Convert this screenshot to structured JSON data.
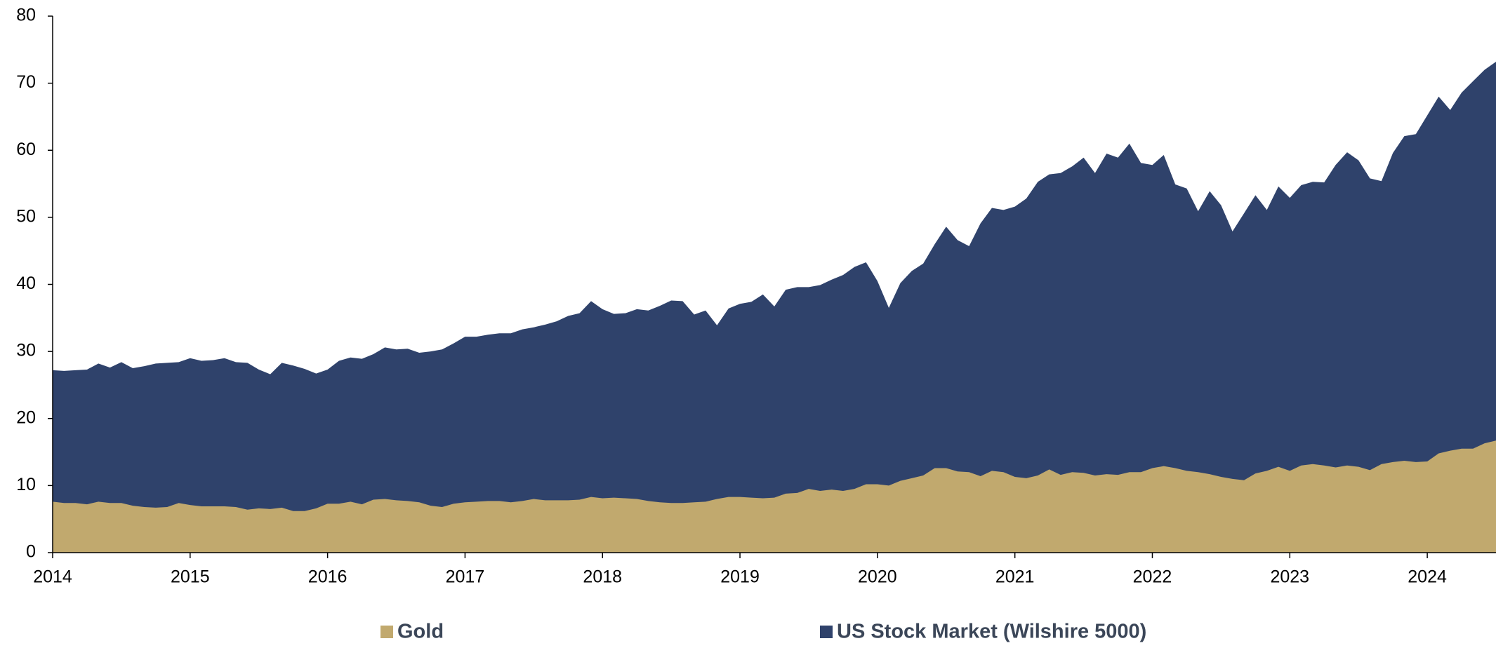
{
  "chart_data": {
    "type": "area",
    "x": [
      2014,
      2014.083,
      2014.167,
      2014.25,
      2014.333,
      2014.417,
      2014.5,
      2014.583,
      2014.667,
      2014.75,
      2014.833,
      2014.917,
      2015,
      2015.083,
      2015.167,
      2015.25,
      2015.333,
      2015.417,
      2015.5,
      2015.583,
      2015.667,
      2015.75,
      2015.833,
      2015.917,
      2016,
      2016.083,
      2016.167,
      2016.25,
      2016.333,
      2016.417,
      2016.5,
      2016.583,
      2016.667,
      2016.75,
      2016.833,
      2016.917,
      2017,
      2017.083,
      2017.167,
      2017.25,
      2017.333,
      2017.417,
      2017.5,
      2017.583,
      2017.667,
      2017.75,
      2017.833,
      2017.917,
      2018,
      2018.083,
      2018.167,
      2018.25,
      2018.333,
      2018.417,
      2018.5,
      2018.583,
      2018.667,
      2018.75,
      2018.833,
      2018.917,
      2019,
      2019.083,
      2019.167,
      2019.25,
      2019.333,
      2019.417,
      2019.5,
      2019.583,
      2019.667,
      2019.75,
      2019.833,
      2019.917,
      2020,
      2020.083,
      2020.167,
      2020.25,
      2020.333,
      2020.417,
      2020.5,
      2020.583,
      2020.667,
      2020.75,
      2020.833,
      2020.917,
      2021,
      2021.083,
      2021.167,
      2021.25,
      2021.333,
      2021.417,
      2021.5,
      2021.583,
      2021.667,
      2021.75,
      2021.833,
      2021.917,
      2022,
      2022.083,
      2022.167,
      2022.25,
      2022.333,
      2022.417,
      2022.5,
      2022.583,
      2022.667,
      2022.75,
      2022.833,
      2022.917,
      2023,
      2023.083,
      2023.167,
      2023.25,
      2023.333,
      2023.417,
      2023.5,
      2023.583,
      2023.667,
      2023.75,
      2023.833,
      2023.917,
      2024,
      2024.083,
      2024.167,
      2024.25,
      2024.333,
      2024.417,
      2024.5
    ],
    "series": [
      {
        "name": "US Stock Market (Wilshire 5000)",
        "color": "#2f426b",
        "values": [
          27.2,
          27.1,
          27.2,
          27.3,
          28.2,
          27.6,
          28.4,
          27.5,
          27.8,
          28.2,
          28.3,
          28.4,
          29.0,
          28.6,
          28.7,
          29.0,
          28.4,
          28.3,
          27.3,
          26.6,
          28.3,
          27.9,
          27.4,
          26.7,
          27.3,
          28.6,
          29.1,
          28.9,
          29.6,
          30.6,
          30.3,
          30.4,
          29.8,
          30.0,
          30.3,
          31.2,
          32.2,
          32.2,
          32.5,
          32.7,
          32.7,
          33.3,
          33.6,
          34.0,
          34.5,
          35.3,
          35.7,
          37.5,
          36.3,
          35.6,
          35.7,
          36.3,
          36.1,
          36.8,
          37.6,
          37.5,
          35.5,
          36.1,
          33.9,
          36.4,
          37.1,
          37.4,
          38.5,
          36.7,
          39.2,
          39.6,
          39.6,
          39.9,
          40.7,
          41.4,
          42.6,
          43.3,
          40.5,
          36.5,
          40.2,
          42.0,
          43.1,
          46.0,
          48.6,
          46.6,
          45.7,
          49.1,
          51.4,
          51.1,
          51.6,
          52.8,
          55.3,
          56.4,
          56.6,
          57.6,
          58.9,
          56.6,
          59.5,
          58.9,
          61.0,
          58.1,
          57.8,
          59.3,
          54.9,
          54.3,
          50.9,
          53.9,
          51.8,
          47.9,
          50.6,
          53.3,
          51.1,
          54.6,
          52.9,
          54.8,
          55.3,
          55.2,
          57.8,
          59.7,
          58.5,
          55.8,
          55.4,
          59.6,
          62.1,
          62.4,
          65.2,
          68.0,
          66.0,
          68.6,
          70.3,
          72.0,
          73.2
        ]
      },
      {
        "name": "Gold",
        "color": "#c1a96e",
        "values": [
          7.6,
          7.4,
          7.4,
          7.2,
          7.6,
          7.4,
          7.4,
          7.0,
          6.8,
          6.7,
          6.8,
          7.4,
          7.1,
          6.9,
          6.9,
          6.9,
          6.8,
          6.4,
          6.6,
          6.5,
          6.7,
          6.2,
          6.2,
          6.6,
          7.3,
          7.3,
          7.6,
          7.2,
          7.9,
          8.0,
          7.8,
          7.7,
          7.5,
          7.0,
          6.8,
          7.3,
          7.5,
          7.6,
          7.7,
          7.7,
          7.5,
          7.7,
          8.0,
          7.8,
          7.8,
          7.8,
          7.9,
          8.3,
          8.1,
          8.2,
          8.1,
          8.0,
          7.7,
          7.5,
          7.4,
          7.4,
          7.5,
          7.6,
          8.0,
          8.3,
          8.3,
          8.2,
          8.1,
          8.2,
          8.8,
          8.9,
          9.5,
          9.2,
          9.4,
          9.2,
          9.5,
          10.2,
          10.2,
          10.0,
          10.7,
          11.1,
          11.5,
          12.6,
          12.6,
          12.1,
          12.0,
          11.4,
          12.2,
          12.0,
          11.3,
          11.1,
          11.5,
          12.4,
          11.6,
          12.0,
          11.9,
          11.5,
          11.7,
          11.6,
          12.0,
          12.0,
          12.6,
          12.9,
          12.6,
          12.2,
          12.0,
          11.7,
          11.3,
          11.0,
          10.8,
          11.8,
          12.2,
          12.8,
          12.2,
          13.0,
          13.2,
          13.0,
          12.7,
          13.0,
          12.8,
          12.3,
          13.2,
          13.5,
          13.7,
          13.5,
          13.6,
          14.8,
          15.2,
          15.5,
          15.5,
          16.3,
          16.7
        ]
      }
    ],
    "xlim": [
      2014,
      2024.5
    ],
    "xticks": [
      2014,
      2015,
      2016,
      2017,
      2018,
      2019,
      2020,
      2021,
      2022,
      2023,
      2024
    ],
    "ylim": [
      0,
      80
    ],
    "yticks": [
      0,
      10,
      20,
      30,
      40,
      50,
      60,
      70,
      80
    ],
    "legend_order": [
      1,
      0
    ]
  }
}
